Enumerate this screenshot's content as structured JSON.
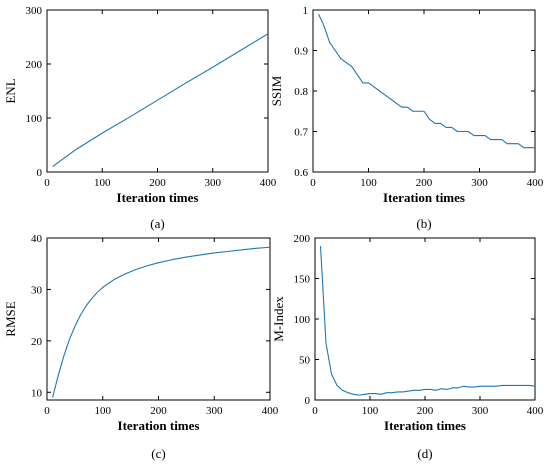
{
  "chart_data": [
    {
      "type": "line",
      "caption": "(a)",
      "xlabel": "Iteration times",
      "ylabel": "ENL",
      "xlim": [
        0,
        400
      ],
      "ylim": [
        0,
        300
      ],
      "xticks": [
        0,
        100,
        200,
        300,
        400
      ],
      "yticks": [
        0,
        100,
        200,
        300
      ],
      "grid": false,
      "color": "#1f77b4",
      "series": [
        {
          "x": [
            10,
            50,
            100,
            150,
            200,
            250,
            300,
            350,
            400
          ],
          "y": [
            10,
            40,
            72,
            102,
            133,
            164,
            194,
            225,
            256
          ]
        }
      ]
    },
    {
      "type": "line",
      "caption": "(b)",
      "xlabel": "Iteration times",
      "ylabel": "SSIM",
      "xlim": [
        0,
        400
      ],
      "ylim": [
        0.6,
        1.0
      ],
      "xticks": [
        0,
        100,
        200,
        300,
        400
      ],
      "yticks": [
        0.6,
        0.7,
        0.8,
        0.9,
        1
      ],
      "grid": false,
      "color": "#1f77b4",
      "series": [
        {
          "x": [
            10,
            20,
            30,
            40,
            50,
            60,
            70,
            80,
            90,
            100,
            110,
            120,
            130,
            140,
            150,
            160,
            170,
            180,
            190,
            200,
            210,
            220,
            230,
            240,
            250,
            260,
            270,
            280,
            290,
            300,
            310,
            320,
            330,
            340,
            350,
            360,
            370,
            380,
            390,
            400
          ],
          "y": [
            0.99,
            0.96,
            0.92,
            0.9,
            0.88,
            0.87,
            0.86,
            0.84,
            0.82,
            0.82,
            0.81,
            0.8,
            0.79,
            0.78,
            0.77,
            0.76,
            0.76,
            0.75,
            0.75,
            0.75,
            0.73,
            0.72,
            0.72,
            0.71,
            0.71,
            0.7,
            0.7,
            0.7,
            0.69,
            0.69,
            0.69,
            0.68,
            0.68,
            0.68,
            0.67,
            0.67,
            0.67,
            0.66,
            0.66,
            0.66
          ]
        }
      ]
    },
    {
      "type": "line",
      "caption": "(c)",
      "xlabel": "Iteration times",
      "ylabel": "RMSE",
      "xlim": [
        0,
        400
      ],
      "ylim": [
        8.5,
        40
      ],
      "xticks": [
        0,
        100,
        200,
        300,
        400
      ],
      "yticks": [
        10,
        20,
        30,
        40
      ],
      "grid": false,
      "color": "#1f77b4",
      "series": [
        {
          "x": [
            10,
            20,
            30,
            40,
            50,
            60,
            70,
            80,
            90,
            100,
            120,
            140,
            160,
            180,
            200,
            225,
            250,
            275,
            300,
            325,
            350,
            375,
            400
          ],
          "y": [
            9.0,
            13.2,
            17.0,
            20.2,
            22.8,
            25.0,
            26.8,
            28.2,
            29.4,
            30.4,
            31.9,
            33.0,
            33.9,
            34.6,
            35.2,
            35.8,
            36.3,
            36.7,
            37.1,
            37.4,
            37.7,
            38.0,
            38.2
          ]
        }
      ]
    },
    {
      "type": "line",
      "caption": "(d)",
      "xlabel": "Iteration times",
      "ylabel": "M-Index",
      "xlim": [
        0,
        400
      ],
      "ylim": [
        0,
        200
      ],
      "xticks": [
        0,
        100,
        200,
        300,
        400
      ],
      "yticks": [
        0,
        50,
        100,
        150,
        200
      ],
      "grid": false,
      "color": "#1f77b4",
      "series": [
        {
          "x": [
            10,
            20,
            30,
            40,
            50,
            60,
            70,
            80,
            90,
            100,
            110,
            120,
            130,
            140,
            150,
            160,
            170,
            180,
            190,
            200,
            210,
            220,
            230,
            240,
            250,
            260,
            270,
            280,
            290,
            300,
            310,
            320,
            330,
            340,
            350,
            360,
            370,
            380,
            390,
            400
          ],
          "y": [
            190,
            70,
            32,
            18,
            12,
            9,
            7,
            6,
            7,
            8,
            8,
            7,
            9,
            9,
            10,
            10,
            11,
            12,
            12,
            13,
            13,
            12,
            14,
            13,
            15,
            15,
            17,
            16,
            16,
            17,
            17,
            17,
            17,
            18,
            18,
            18,
            18,
            18,
            18,
            17
          ]
        }
      ]
    }
  ]
}
